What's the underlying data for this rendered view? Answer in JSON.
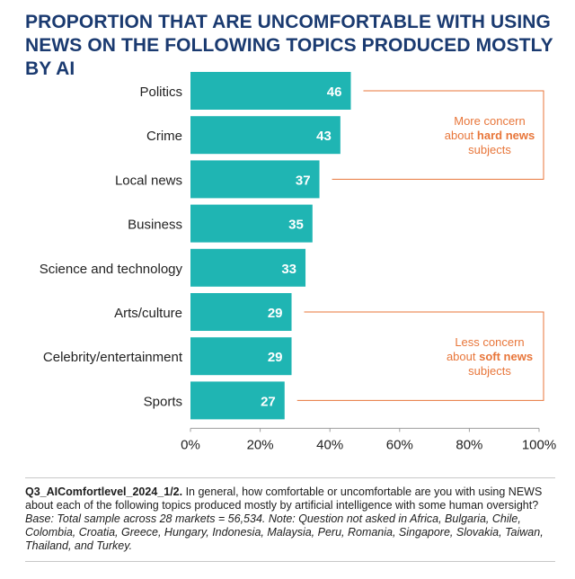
{
  "title": {
    "line1": "PROPORTION THAT ARE UNCOMFORTABLE WITH USING",
    "line2": "NEWS ON THE FOLLOWING TOPICS PRODUCED MOSTLY BY AI"
  },
  "chart_data": {
    "type": "bar",
    "orientation": "horizontal",
    "categories": [
      "Politics",
      "Crime",
      "Local news",
      "Business",
      "Science and technology",
      "Arts/culture",
      "Celebrity/entertainment",
      "Sports"
    ],
    "values": [
      46,
      43,
      37,
      35,
      33,
      29,
      29,
      27
    ],
    "xlim": [
      0,
      100
    ],
    "xticks": [
      "0%",
      "20%",
      "40%",
      "60%",
      "80%",
      "100%"
    ],
    "bar_color": "#1fb5b3",
    "annotation_color": "#e8763a",
    "annotations": [
      {
        "group": "hard",
        "line1": "More concern",
        "prefix": "about ",
        "bold": "hard news",
        "line3": "subjects"
      },
      {
        "group": "soft",
        "line1": "Less concern",
        "prefix": "about ",
        "bold": "soft news",
        "line3": "subjects"
      }
    ]
  },
  "footnote": {
    "code": "Q3_AIComfortlevel_2024_1/2.",
    "question": " In general, how comfortable or uncomfortable are you with using NEWS about each of the following topics produced mostly by artificial intelligence with some human oversight? ",
    "base": "Base: Total sample across 28 markets = 56,534. Note: Question not asked in Africa, Bulgaria, Chile, Colombia, Croatia, Greece, Hungary, Indonesia, Malaysia, Peru, Romania, Singapore, Slovakia, Taiwan, Thailand, and Turkey."
  },
  "colors": {
    "title": "#1a3a70",
    "axis": "#9e9e9e",
    "bar_label": "#ffffff"
  }
}
